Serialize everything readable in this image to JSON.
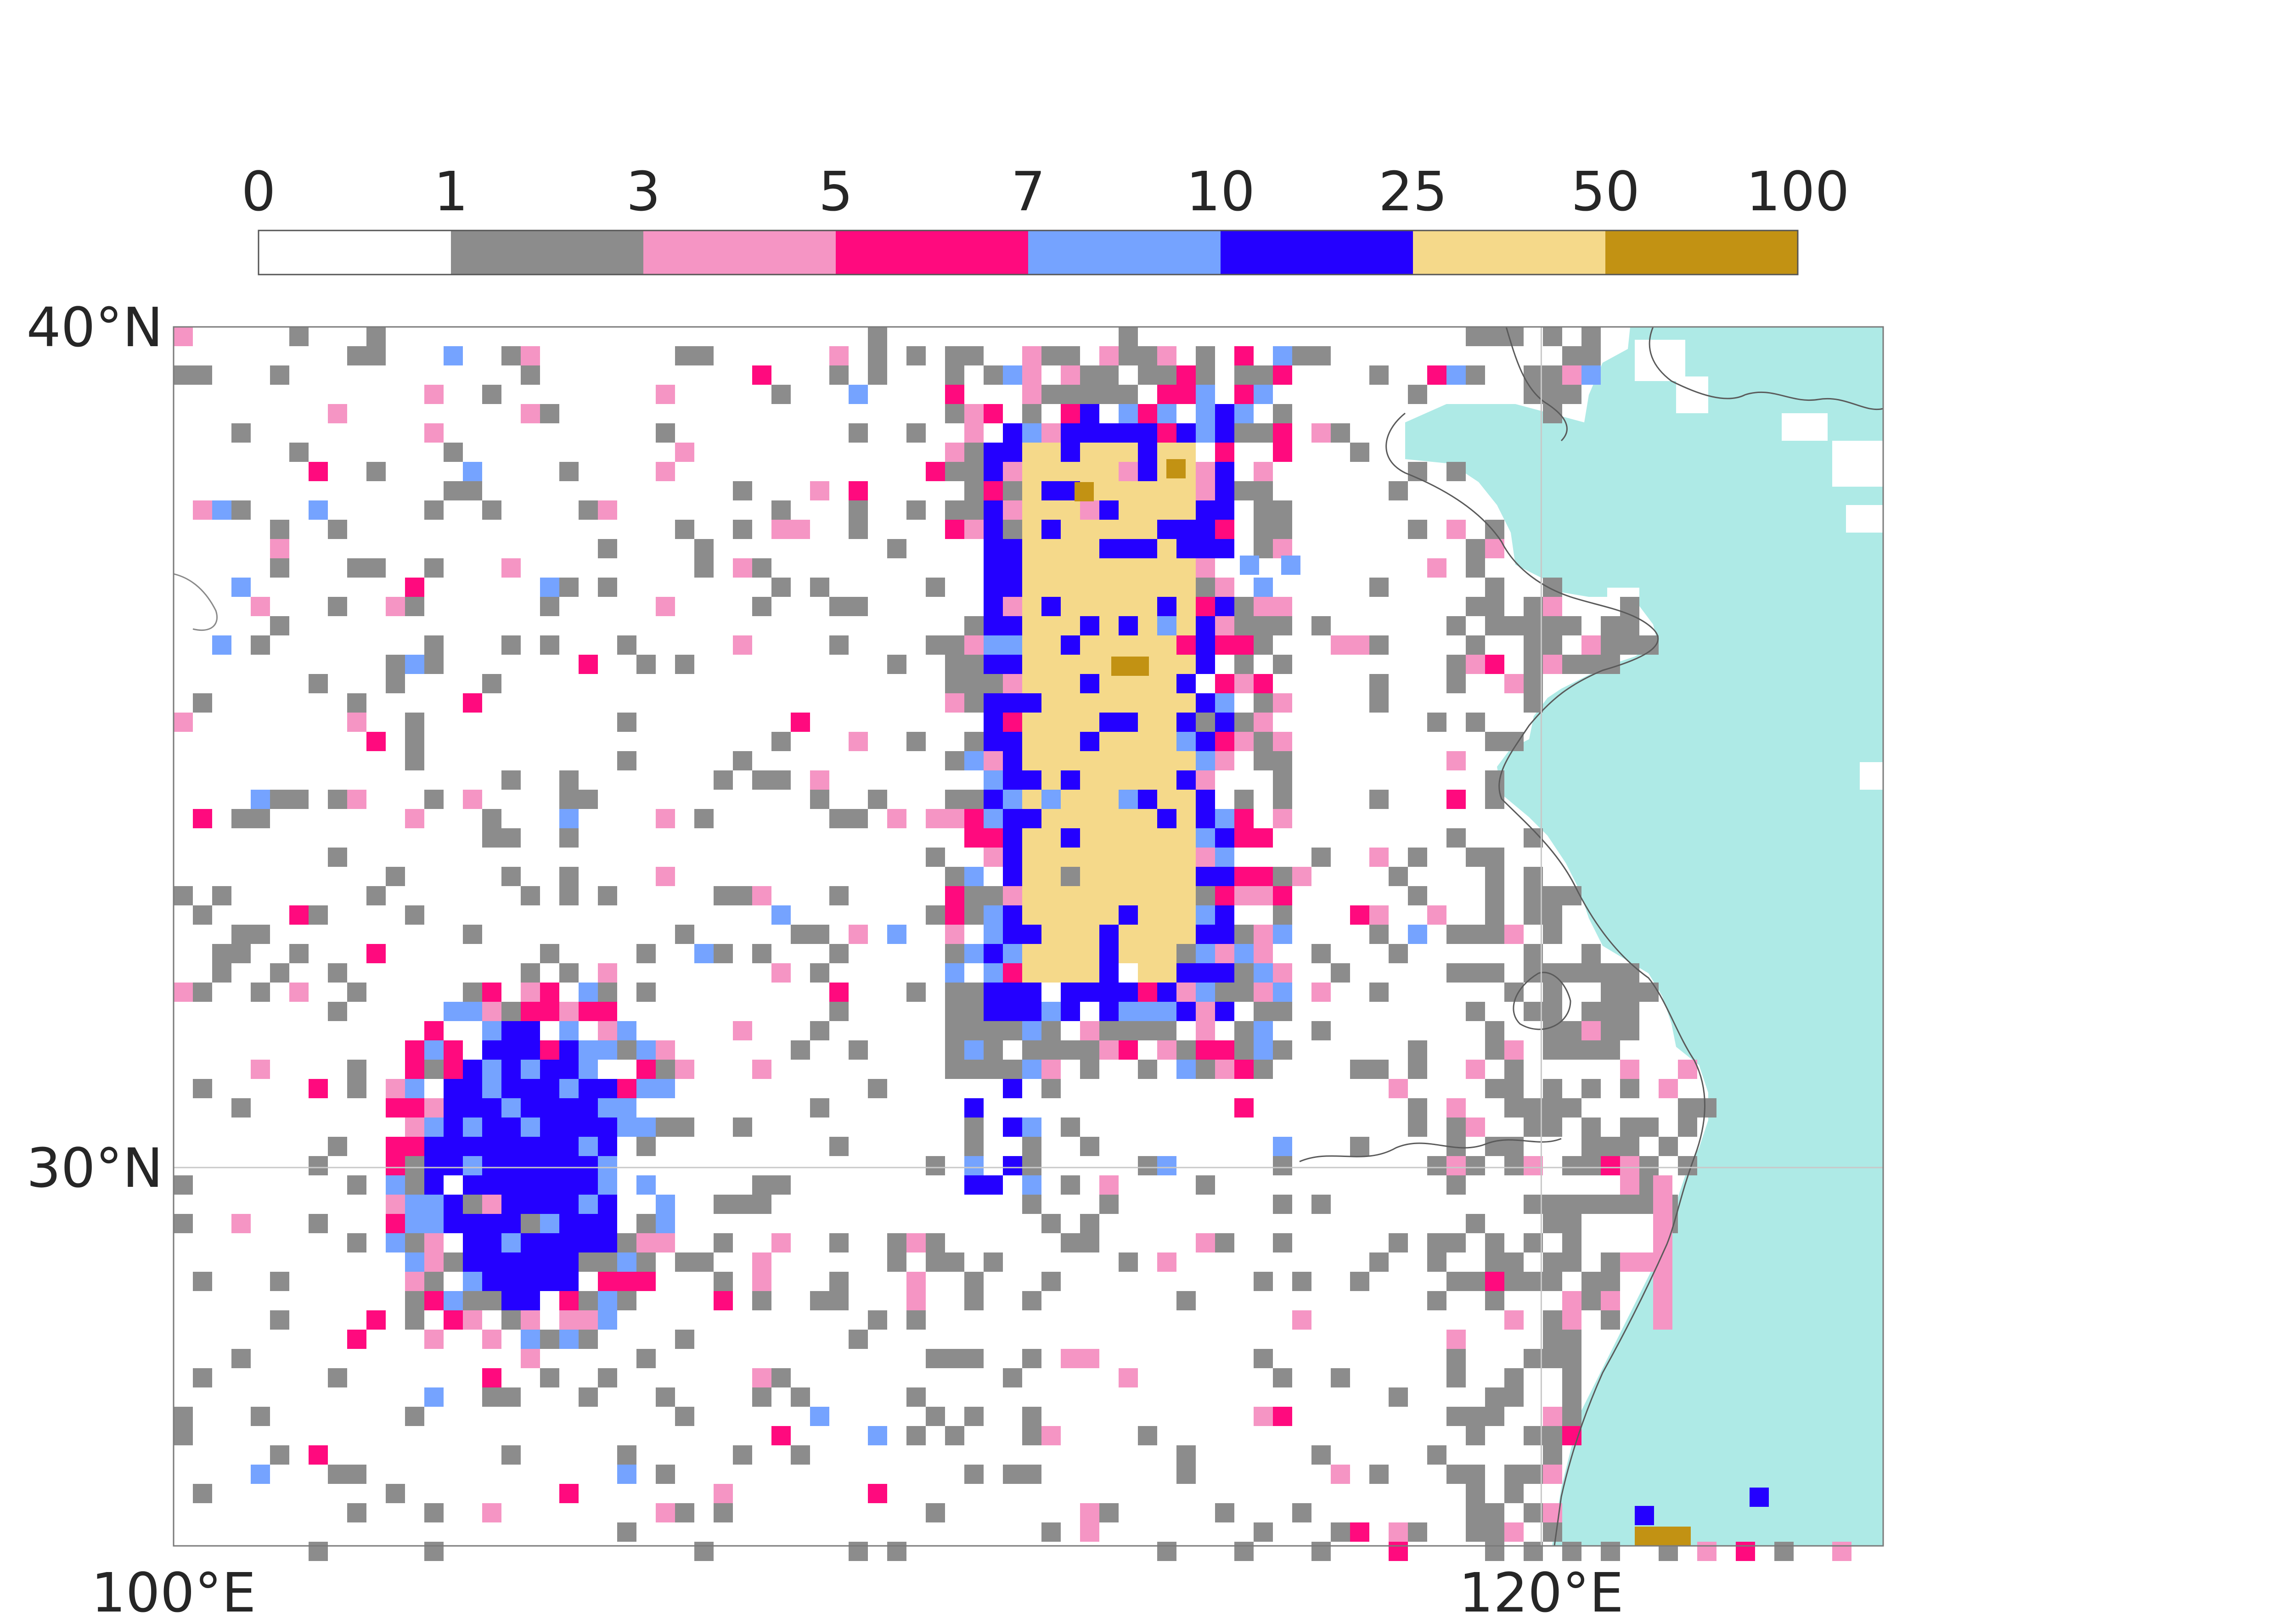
{
  "colorbar": {
    "bins": [
      {
        "label": "0",
        "color": "#ffffff"
      },
      {
        "label": "1",
        "color": "#8c8c8c"
      },
      {
        "label": "3",
        "color": "#f595c4"
      },
      {
        "label": "5",
        "color": "#ff0a7e"
      },
      {
        "label": "7",
        "color": "#75a3ff"
      },
      {
        "label": "10",
        "color": "#2400ff"
      },
      {
        "label": "25",
        "color": "#f5d98a"
      },
      {
        "label": "50",
        "color": "#c29213"
      },
      {
        "label": "100",
        "color": ""
      }
    ]
  },
  "map": {
    "lon_range": [
      100,
      125
    ],
    "lat_range": [
      25.5,
      40
    ],
    "x_ticks": [
      {
        "value": 100,
        "label": "100°E"
      },
      {
        "value": 120,
        "label": "120°E"
      }
    ],
    "y_ticks": [
      {
        "value": 40,
        "label": "40°N"
      },
      {
        "value": 30,
        "label": "30°N"
      }
    ],
    "gridlines": [
      {
        "lon": 120
      },
      {
        "lat": 30
      }
    ],
    "sea_color": "#aeeae6",
    "coast_color": "#5a5a5a",
    "frame_color": "#7a7a7a"
  },
  "chart_data": {
    "type": "heatmap",
    "title": "",
    "xlabel": "",
    "ylabel": "",
    "value_bins": [
      0,
      1,
      3,
      5,
      7,
      10,
      25,
      50,
      100
    ],
    "region_approximation": [
      {
        "bin": 6,
        "lon": [
          112.6,
          114.8
        ],
        "lat": [
          32.6,
          38.6
        ],
        "note": ""
      },
      {
        "bin": 5,
        "lon": [
          112.2,
          115.3
        ],
        "lat": [
          32.0,
          38.8
        ],
        "note": ""
      },
      {
        "bin": 5,
        "lon": [
          104.4,
          106.4
        ],
        "lat": [
          28.9,
          31.4
        ],
        "note": ""
      },
      {
        "bin": 7,
        "lon": [
          113.2,
          113.6
        ],
        "lat": [
          38.1,
          38.3
        ],
        "note": ""
      },
      {
        "bin": 7,
        "lon": [
          114.0,
          114.6
        ],
        "lat": [
          35.6,
          35.8
        ],
        "note": ""
      },
      {
        "bin": 7,
        "lon": [
          121.3,
          122.0
        ],
        "lat": [
          25.5,
          25.8
        ],
        "note": ""
      }
    ]
  }
}
